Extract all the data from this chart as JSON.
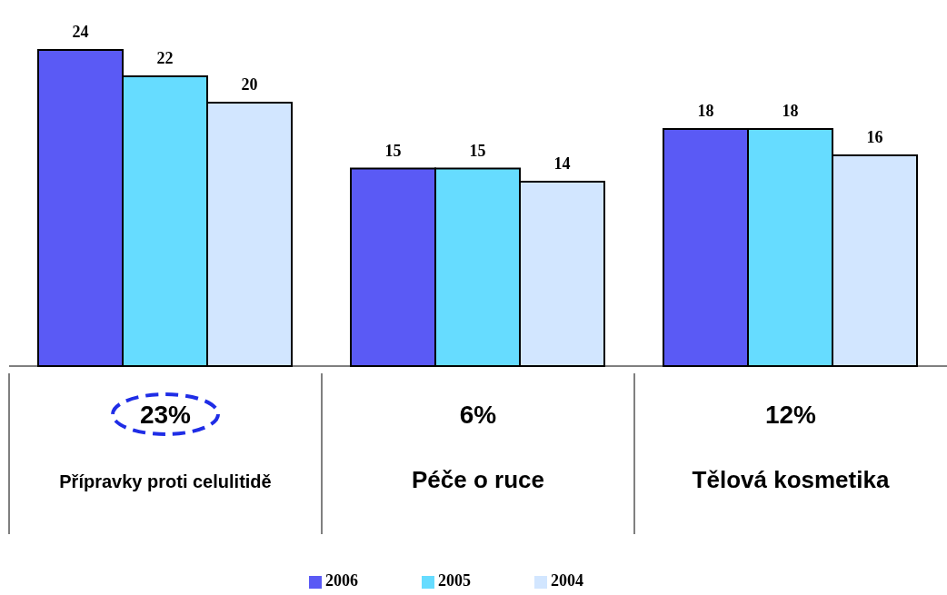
{
  "chart_data": {
    "type": "bar",
    "categories": [
      "Přípravky proti celulitidě",
      "Péče o ruce",
      "Tělová kosmetika"
    ],
    "series": [
      {
        "name": "2006",
        "color": "#5a5af5",
        "values": [
          24,
          15,
          18
        ]
      },
      {
        "name": "2005",
        "color": "#66dcff",
        "values": [
          22,
          15,
          18
        ]
      },
      {
        "name": "2004",
        "color": "#d2e6ff",
        "values": [
          20,
          14,
          16
        ]
      }
    ],
    "data_labels": true,
    "legend": "bottom",
    "annotations": [
      "23%",
      "6%",
      "12%"
    ]
  }
}
